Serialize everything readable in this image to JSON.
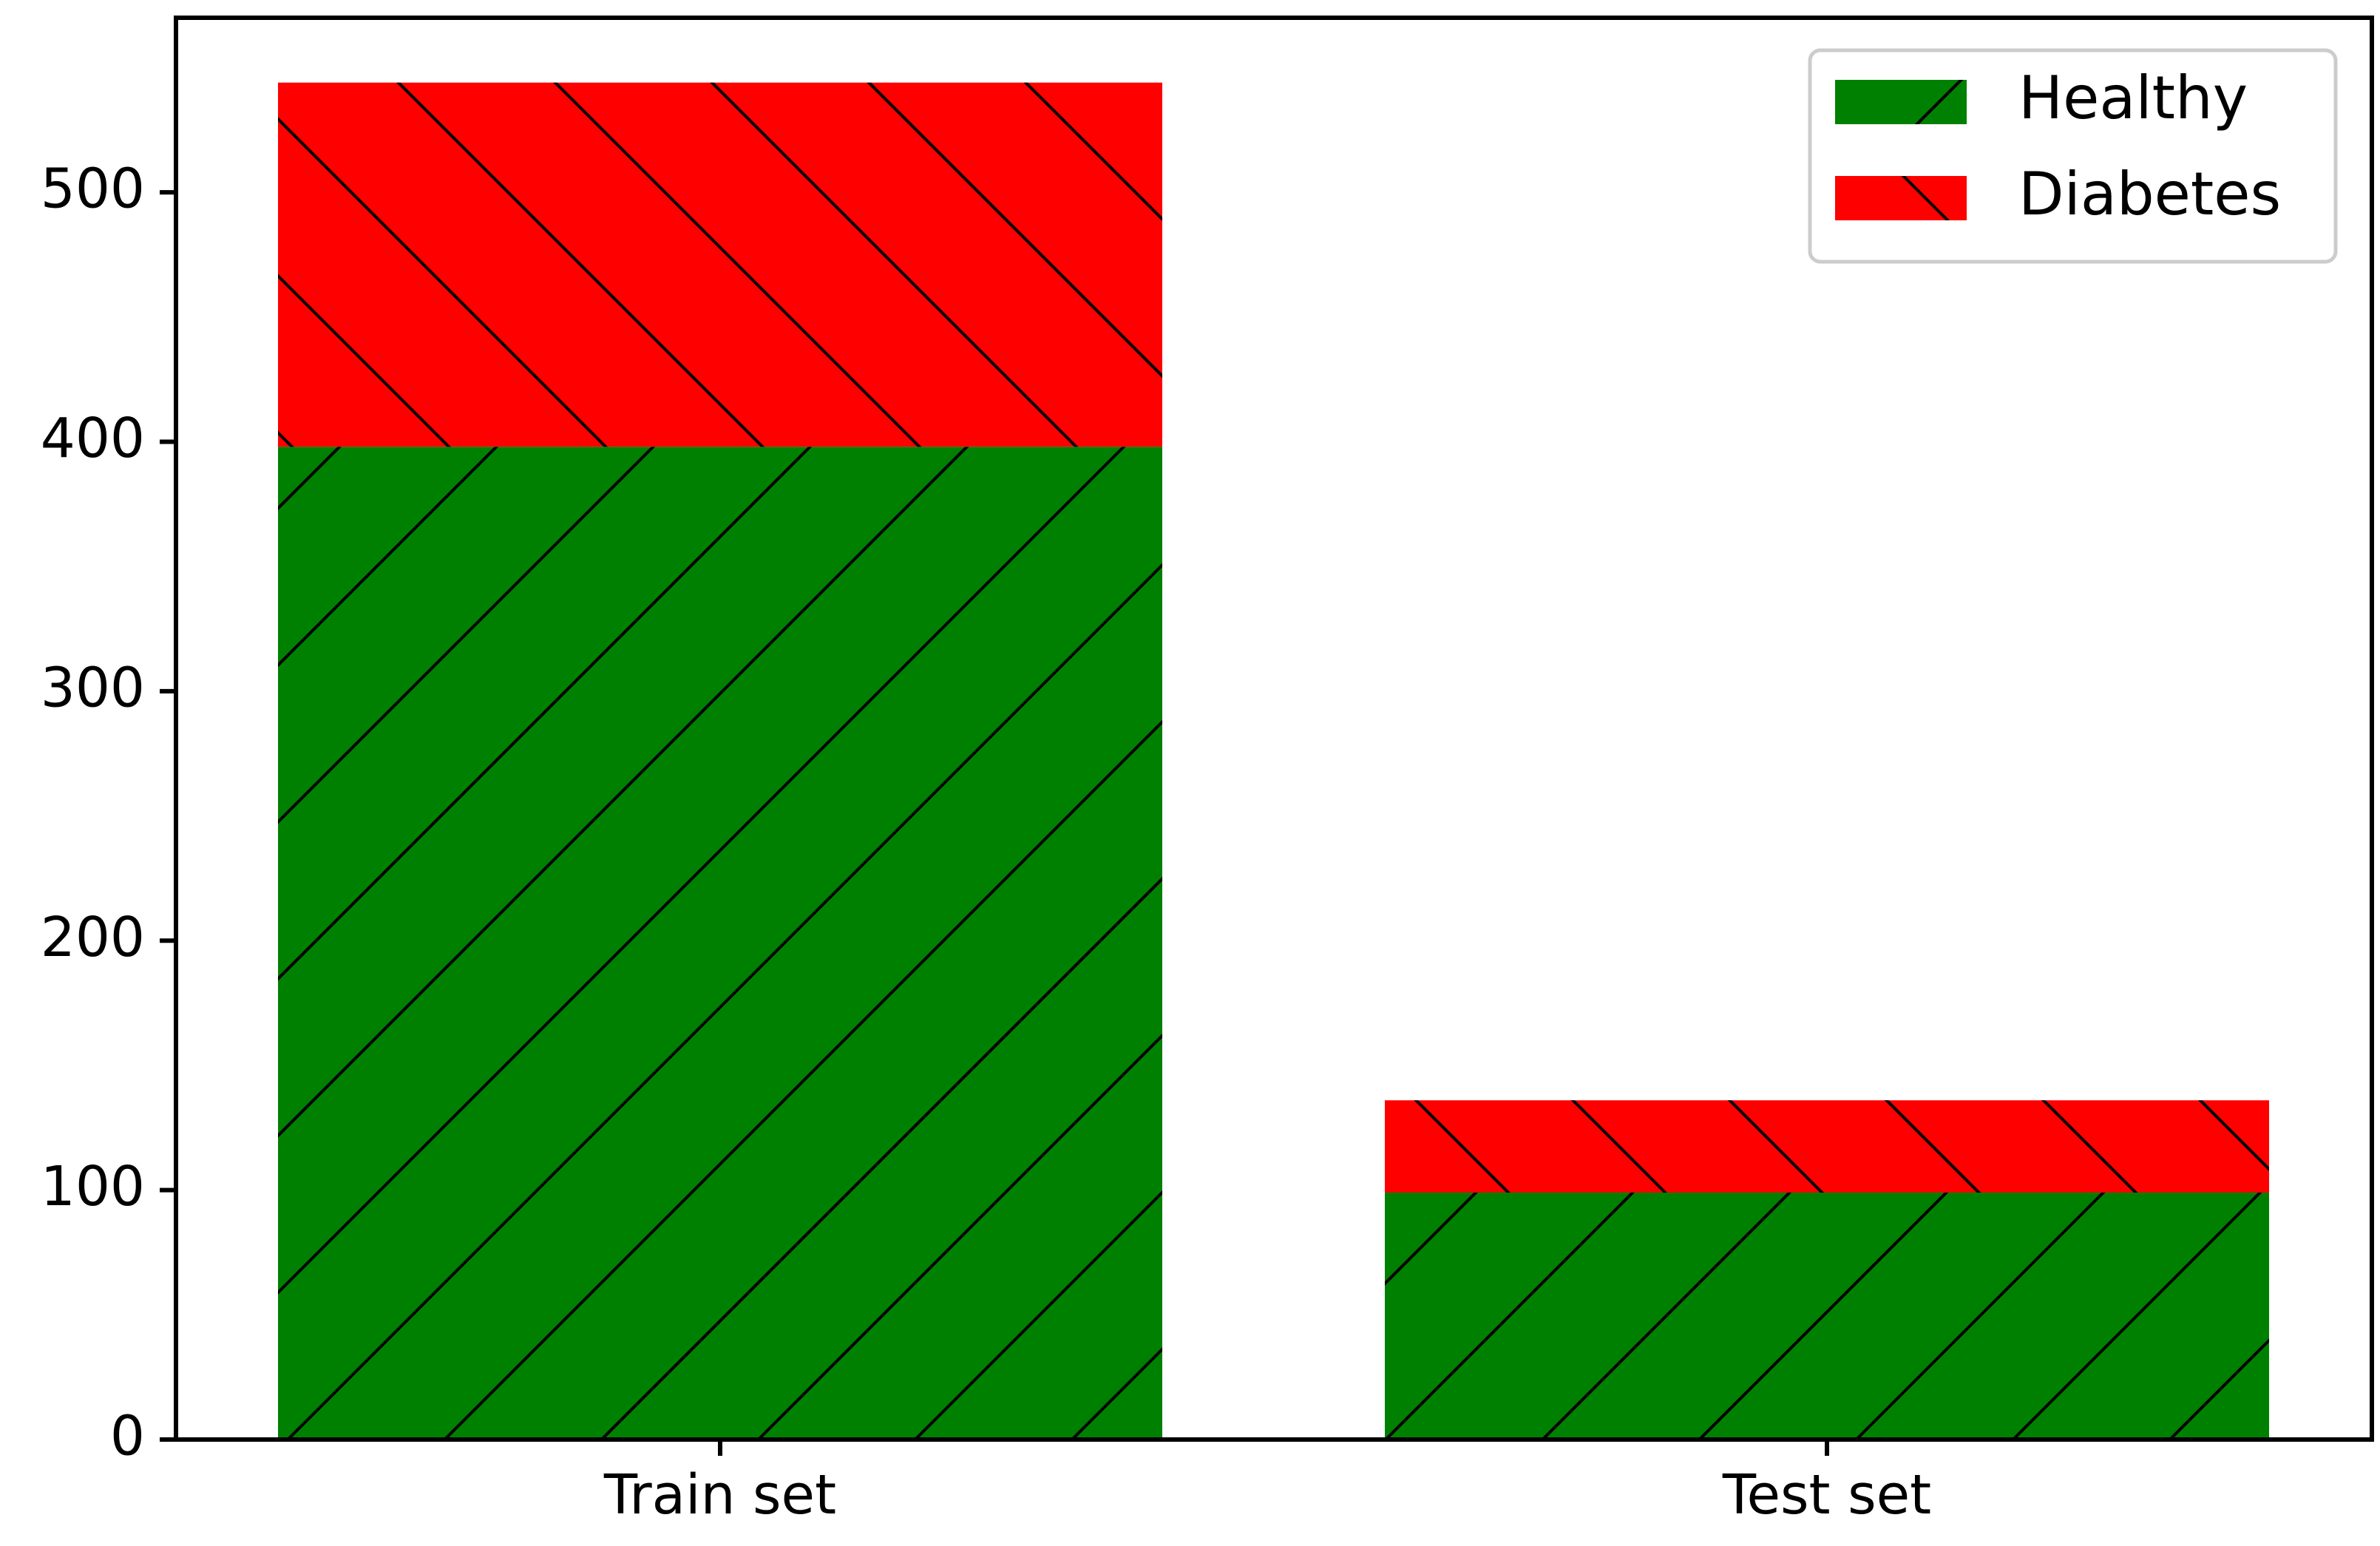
{
  "chart_data": {
    "type": "bar",
    "stacked": true,
    "categories": [
      "Train set",
      "Test set"
    ],
    "series": [
      {
        "name": "Healthy",
        "values": [
          398,
          99
        ],
        "color": "#008000",
        "hatch": "forward-diagonal"
      },
      {
        "name": "Diabetes",
        "values": [
          146,
          37
        ],
        "color": "#ff0000",
        "hatch": "backward-diagonal"
      }
    ],
    "ylim": [
      0,
      570
    ],
    "yticks": [
      0,
      100,
      200,
      300,
      400,
      500
    ],
    "ytick_labels": [
      "0",
      "100",
      "200",
      "300",
      "400",
      "500"
    ],
    "title": "",
    "xlabel": "",
    "ylabel": "",
    "grid": false,
    "legend_position": "top-right"
  }
}
